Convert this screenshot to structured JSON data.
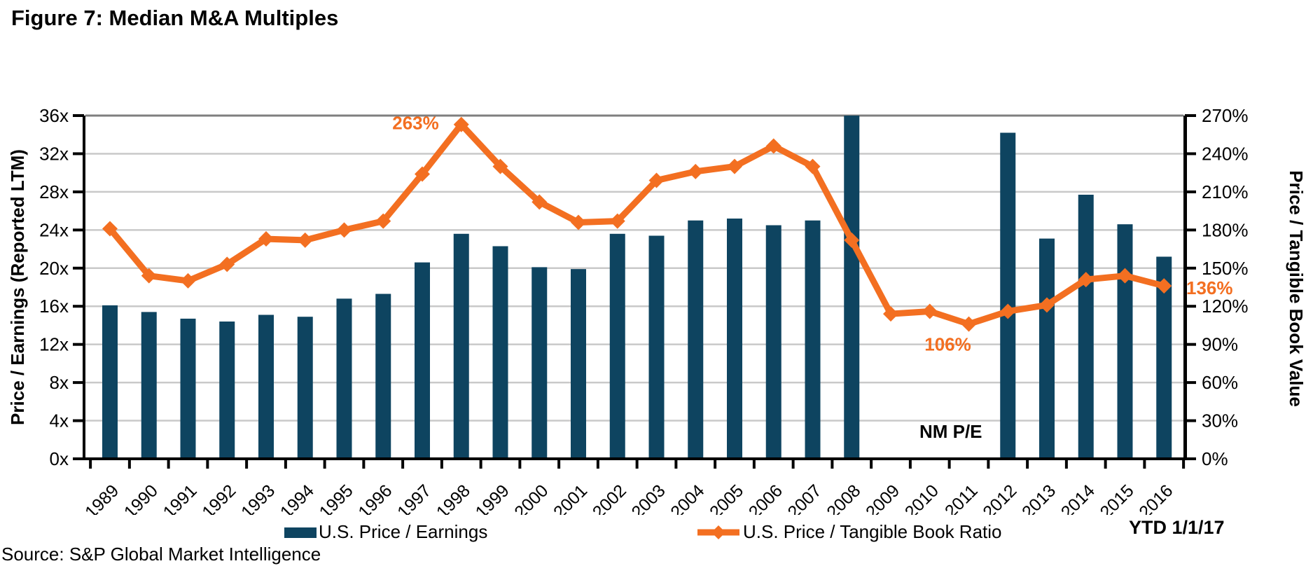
{
  "figure": {
    "title": "Figure 7: Median M&A Multiples"
  },
  "source": "Source: S&P Global Market Intelligence",
  "legend": {
    "bar_label": "U.S. Price / Earnings",
    "line_label": "U.S. Price / Tangible Book Ratio",
    "ytd_label": "YTD 1/1/17"
  },
  "colors": {
    "bar": "#0e4460",
    "line": "#f36f21",
    "grid": "#c9c9c9",
    "grid_top": "#7f7f7f",
    "axis": "#000000",
    "text": "#000000"
  },
  "chart_data": {
    "type": "combo-bar-line",
    "categories": [
      "1989",
      "1990",
      "1991",
      "1992",
      "1993",
      "1994",
      "1995",
      "1996",
      "1997",
      "1998",
      "1999",
      "2000",
      "2001",
      "2002",
      "2003",
      "2004",
      "2005",
      "2006",
      "2007",
      "2008",
      "2009",
      "2010",
      "2011",
      "2012",
      "2013",
      "2014",
      "2015",
      "2016"
    ],
    "series": [
      {
        "name": "U.S. Price / Earnings",
        "type": "bar",
        "axis": "left",
        "unit": "x",
        "values": [
          16.1,
          15.4,
          14.7,
          14.4,
          15.1,
          14.9,
          16.8,
          17.3,
          20.6,
          23.6,
          22.3,
          20.1,
          19.9,
          23.6,
          23.4,
          25.0,
          25.2,
          24.5,
          25.0,
          36.0,
          null,
          null,
          null,
          34.2,
          23.1,
          27.7,
          24.6,
          21.2
        ],
        "notes": "2008 bar clipped at 36x chart top; 2009-2011 shown as NM P/E (no bars)"
      },
      {
        "name": "U.S. Price / Tangible Book Ratio",
        "type": "line",
        "axis": "right",
        "unit": "%",
        "values": [
          181,
          144,
          140,
          153,
          173,
          172,
          180,
          187,
          224,
          263,
          230,
          202,
          186,
          187,
          219,
          226,
          230,
          246,
          230,
          172,
          114,
          116,
          106,
          116,
          121,
          141,
          144,
          136
        ]
      }
    ],
    "left_axis": {
      "label": "Price / Earnings (Reported LTM)",
      "min": 0,
      "max": 36,
      "step": 4,
      "tick_suffix": "x"
    },
    "right_axis": {
      "label": "Price / Tangible Book Value",
      "min": 0,
      "max": 270,
      "step": 30,
      "tick_suffix": "%"
    },
    "grid": "horizontal",
    "legend_position": "bottom",
    "annotations": [
      {
        "text": "263%",
        "year": "1998",
        "series": "line",
        "position": "left-of-peak"
      },
      {
        "text": "106%",
        "year": "2011",
        "series": "line",
        "position": "below"
      },
      {
        "text": "136%",
        "year": "2016",
        "series": "line",
        "position": "right"
      },
      {
        "text": "NM P/E",
        "year": "2010",
        "series": "bar",
        "position": "axis-note"
      }
    ]
  }
}
